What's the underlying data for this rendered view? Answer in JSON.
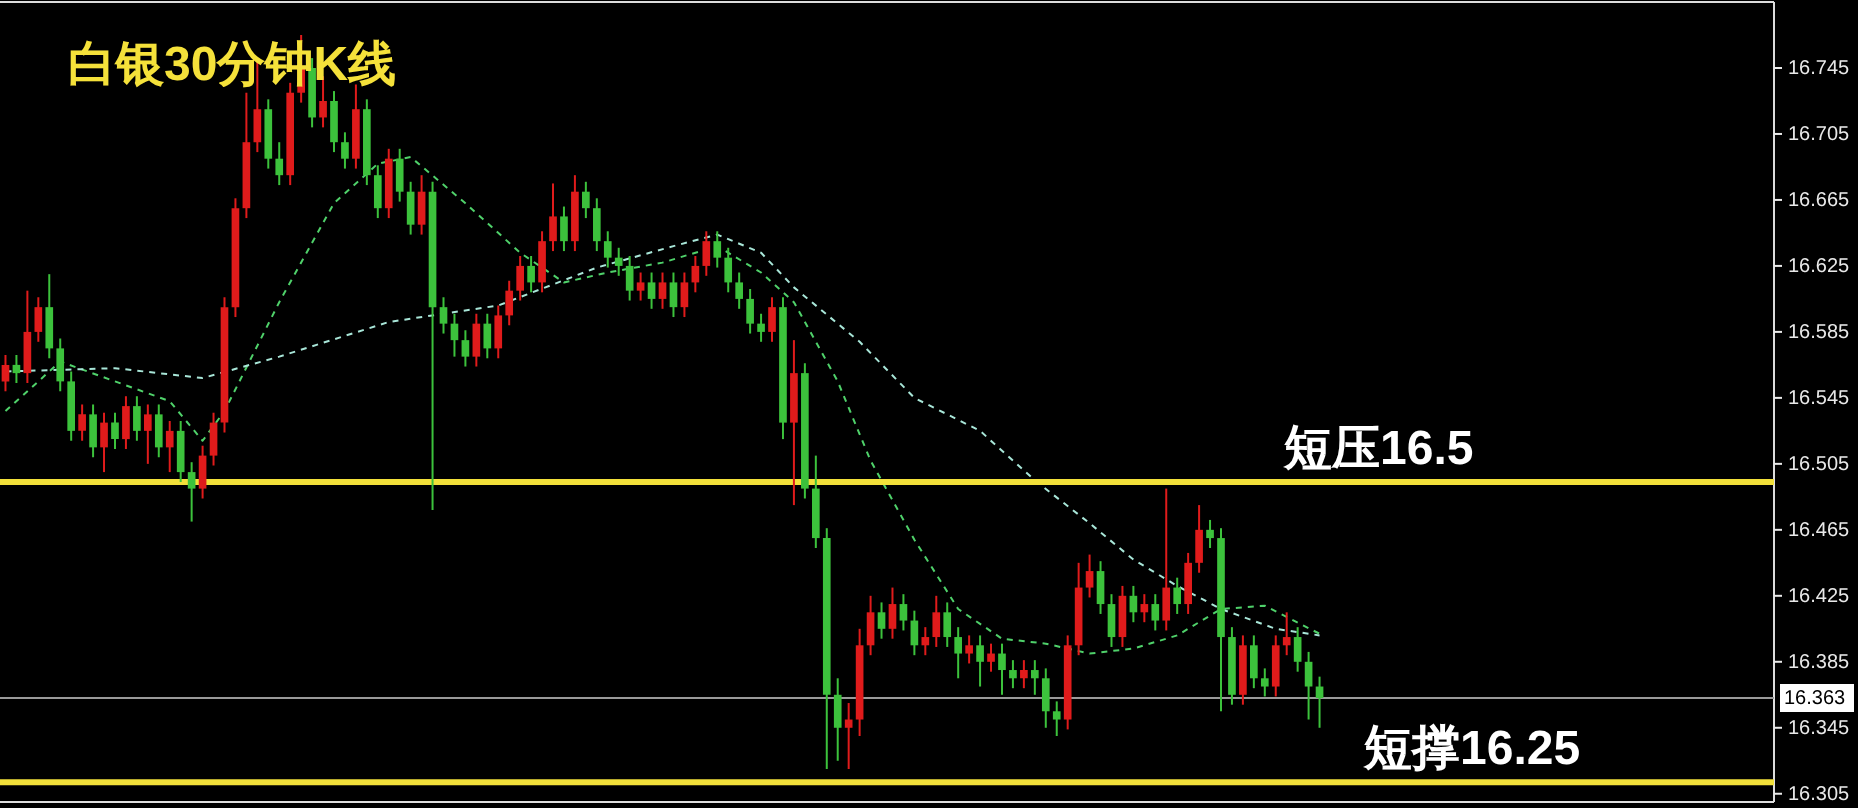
{
  "chart_data": {
    "type": "candlestick",
    "title": "白银30分钟K线",
    "categories": [
      null,
      null,
      null,
      null,
      null,
      null,
      null,
      null,
      null,
      null,
      null,
      null,
      null,
      null,
      null,
      null,
      null,
      null,
      null,
      null,
      null,
      null,
      null,
      null,
      null,
      null,
      null,
      null,
      null,
      null,
      null,
      null,
      null,
      null,
      null,
      null,
      null,
      null,
      null,
      null,
      null,
      null,
      null,
      null,
      null,
      null,
      null,
      null,
      null,
      null,
      null,
      null,
      null,
      null,
      null,
      null,
      null,
      null,
      null,
      null,
      null,
      null,
      null,
      null,
      null,
      null,
      null,
      null,
      null,
      null,
      null,
      null,
      null,
      null,
      null,
      null,
      null,
      null,
      null,
      null,
      null,
      null,
      null,
      null,
      null,
      null,
      null,
      null,
      null,
      null,
      null,
      null,
      null,
      null,
      null,
      null,
      null,
      null,
      null,
      null,
      null,
      null,
      null,
      null,
      null,
      null,
      null,
      null,
      null,
      null,
      null,
      null,
      null,
      null,
      null,
      null,
      null,
      null,
      null,
      null,
      null,
      null,
      null,
      null,
      null,
      null,
      null,
      null,
      null,
      null,
      null,
      null,
      null,
      null,
      null,
      null,
      null,
      null,
      null,
      null,
      null,
      null,
      null,
      null,
      null,
      null,
      null,
      null,
      null,
      null,
      null,
      null,
      null,
      null,
      null,
      null,
      null,
      null,
      null,
      null,
      null,
      null
    ],
    "ohlc": [
      [
        16.555,
        16.571,
        16.549,
        16.565
      ],
      [
        16.565,
        16.571,
        16.554,
        16.56
      ],
      [
        16.56,
        16.61,
        16.554,
        16.585
      ],
      [
        16.585,
        16.606,
        16.579,
        16.6
      ],
      [
        16.6,
        16.62,
        16.569,
        16.575
      ],
      [
        16.575,
        16.581,
        16.549,
        16.555
      ],
      [
        16.555,
        16.561,
        16.519,
        16.525
      ],
      [
        16.525,
        16.541,
        16.519,
        16.535
      ],
      [
        16.535,
        16.541,
        16.509,
        16.515
      ],
      [
        16.515,
        16.536,
        16.5,
        16.53
      ],
      [
        16.53,
        16.536,
        16.514,
        16.52
      ],
      [
        16.52,
        16.546,
        16.514,
        16.54
      ],
      [
        16.54,
        16.546,
        16.519,
        16.525
      ],
      [
        16.525,
        16.541,
        16.505,
        16.535
      ],
      [
        16.535,
        16.541,
        16.509,
        16.515
      ],
      [
        16.515,
        16.531,
        16.5,
        16.525
      ],
      [
        16.525,
        16.531,
        16.494,
        16.5
      ],
      [
        16.5,
        16.506,
        16.47,
        16.49
      ],
      [
        16.49,
        16.516,
        16.484,
        16.51
      ],
      [
        16.51,
        16.536,
        16.504,
        16.53
      ],
      [
        16.53,
        16.606,
        16.524,
        16.6
      ],
      [
        16.6,
        16.666,
        16.594,
        16.66
      ],
      [
        16.66,
        16.73,
        16.654,
        16.7
      ],
      [
        16.7,
        16.75,
        16.694,
        16.72
      ],
      [
        16.72,
        16.726,
        16.684,
        16.69
      ],
      [
        16.69,
        16.7,
        16.674,
        16.68
      ],
      [
        16.68,
        16.736,
        16.674,
        16.73
      ],
      [
        16.73,
        16.765,
        16.724,
        16.745
      ],
      [
        16.745,
        16.751,
        16.709,
        16.715
      ],
      [
        16.715,
        16.74,
        16.709,
        16.725
      ],
      [
        16.725,
        16.731,
        16.694,
        16.7
      ],
      [
        16.7,
        16.706,
        16.684,
        16.69
      ],
      [
        16.69,
        16.735,
        16.684,
        16.72
      ],
      [
        16.72,
        16.726,
        16.674,
        16.68
      ],
      [
        16.68,
        16.686,
        16.654,
        16.66
      ],
      [
        16.66,
        16.696,
        16.654,
        16.69
      ],
      [
        16.69,
        16.696,
        16.664,
        16.67
      ],
      [
        16.67,
        16.676,
        16.644,
        16.65
      ],
      [
        16.65,
        16.68,
        16.644,
        16.67
      ],
      [
        16.67,
        16.676,
        16.477,
        16.6
      ],
      [
        16.6,
        16.606,
        16.584,
        16.59
      ],
      [
        16.59,
        16.596,
        16.57,
        16.58
      ],
      [
        16.58,
        16.586,
        16.564,
        16.57
      ],
      [
        16.57,
        16.596,
        16.564,
        16.59
      ],
      [
        16.59,
        16.596,
        16.569,
        16.575
      ],
      [
        16.575,
        16.601,
        16.569,
        16.595
      ],
      [
        16.595,
        16.616,
        16.589,
        16.61
      ],
      [
        16.61,
        16.631,
        16.604,
        16.625
      ],
      [
        16.625,
        16.631,
        16.609,
        16.615
      ],
      [
        16.615,
        16.646,
        16.609,
        16.64
      ],
      [
        16.64,
        16.675,
        16.634,
        16.655
      ],
      [
        16.655,
        16.661,
        16.634,
        16.64
      ],
      [
        16.64,
        16.68,
        16.634,
        16.67
      ],
      [
        16.67,
        16.676,
        16.654,
        16.66
      ],
      [
        16.66,
        16.666,
        16.634,
        16.64
      ],
      [
        16.64,
        16.646,
        16.624,
        16.63
      ],
      [
        16.63,
        16.636,
        16.619,
        16.625
      ],
      [
        16.625,
        16.631,
        16.604,
        16.61
      ],
      [
        16.61,
        16.621,
        16.604,
        16.615
      ],
      [
        16.615,
        16.621,
        16.599,
        16.605
      ],
      [
        16.605,
        16.621,
        16.599,
        16.615
      ],
      [
        16.615,
        16.621,
        16.594,
        16.6
      ],
      [
        16.6,
        16.621,
        16.594,
        16.615
      ],
      [
        16.615,
        16.631,
        16.609,
        16.625
      ],
      [
        16.625,
        16.646,
        16.619,
        16.64
      ],
      [
        16.64,
        16.646,
        16.624,
        16.63
      ],
      [
        16.63,
        16.636,
        16.609,
        16.615
      ],
      [
        16.615,
        16.621,
        16.599,
        16.605
      ],
      [
        16.605,
        16.611,
        16.584,
        16.59
      ],
      [
        16.59,
        16.596,
        16.579,
        16.585
      ],
      [
        16.585,
        16.606,
        16.579,
        16.6
      ],
      [
        16.6,
        16.606,
        16.52,
        16.53
      ],
      [
        16.53,
        16.58,
        16.48,
        16.56
      ],
      [
        16.56,
        16.566,
        16.484,
        16.49
      ],
      [
        16.49,
        16.51,
        16.454,
        16.46
      ],
      [
        16.46,
        16.466,
        16.32,
        16.365
      ],
      [
        16.365,
        16.375,
        16.325,
        16.345
      ],
      [
        16.345,
        16.36,
        16.32,
        16.35
      ],
      [
        16.35,
        16.405,
        16.34,
        16.395
      ],
      [
        16.395,
        16.425,
        16.389,
        16.415
      ],
      [
        16.415,
        16.421,
        16.399,
        16.405
      ],
      [
        16.405,
        16.43,
        16.399,
        16.42
      ],
      [
        16.42,
        16.426,
        16.404,
        16.41
      ],
      [
        16.41,
        16.416,
        16.389,
        16.395
      ],
      [
        16.395,
        16.406,
        16.389,
        16.4
      ],
      [
        16.4,
        16.425,
        16.394,
        16.415
      ],
      [
        16.415,
        16.421,
        16.394,
        16.4
      ],
      [
        16.4,
        16.406,
        16.375,
        16.39
      ],
      [
        16.39,
        16.401,
        16.384,
        16.395
      ],
      [
        16.395,
        16.401,
        16.37,
        16.385
      ],
      [
        16.385,
        16.396,
        16.379,
        16.39
      ],
      [
        16.39,
        16.396,
        16.365,
        16.38
      ],
      [
        16.38,
        16.386,
        16.369,
        16.375
      ],
      [
        16.375,
        16.386,
        16.369,
        16.38
      ],
      [
        16.38,
        16.386,
        16.365,
        16.375
      ],
      [
        16.375,
        16.381,
        16.345,
        16.355
      ],
      [
        16.355,
        16.361,
        16.34,
        16.35
      ],
      [
        16.35,
        16.401,
        16.344,
        16.395
      ],
      [
        16.395,
        16.445,
        16.389,
        16.43
      ],
      [
        16.43,
        16.45,
        16.424,
        16.44
      ],
      [
        16.44,
        16.446,
        16.414,
        16.42
      ],
      [
        16.42,
        16.426,
        16.394,
        16.4
      ],
      [
        16.4,
        16.431,
        16.394,
        16.425
      ],
      [
        16.425,
        16.431,
        16.409,
        16.415
      ],
      [
        16.415,
        16.426,
        16.409,
        16.42
      ],
      [
        16.42,
        16.426,
        16.404,
        16.41
      ],
      [
        16.41,
        16.49,
        16.404,
        16.43
      ],
      [
        16.43,
        16.436,
        16.414,
        16.42
      ],
      [
        16.42,
        16.451,
        16.414,
        16.445
      ],
      [
        16.445,
        16.48,
        16.439,
        16.465
      ],
      [
        16.465,
        16.471,
        16.454,
        16.46
      ],
      [
        16.46,
        16.466,
        16.355,
        16.4
      ],
      [
        16.4,
        16.406,
        16.359,
        16.365
      ],
      [
        16.365,
        16.401,
        16.359,
        16.395
      ],
      [
        16.395,
        16.401,
        16.369,
        16.375
      ],
      [
        16.375,
        16.381,
        16.364,
        16.37
      ],
      [
        16.37,
        16.401,
        16.364,
        16.395
      ],
      [
        16.395,
        16.415,
        16.389,
        16.4
      ],
      [
        16.4,
        16.406,
        16.379,
        16.385
      ],
      [
        16.385,
        16.391,
        16.35,
        16.37
      ],
      [
        16.37,
        16.376,
        16.345,
        16.363
      ],
      null,
      null,
      null,
      null,
      null,
      null,
      null,
      null,
      null,
      null,
      null,
      null,
      null,
      null,
      null,
      null,
      null,
      null,
      null,
      null,
      null,
      null,
      null,
      null,
      null,
      null,
      null,
      null,
      null,
      null,
      null,
      null,
      null,
      null,
      null,
      null,
      null,
      null,
      null,
      null,
      null
    ],
    "colors": [
      "#e01b1b",
      "#3cc23c",
      "#e01b1b",
      "#e01b1b",
      "#3cc23c",
      "#3cc23c",
      "#3cc23c",
      "#e01b1b",
      "#3cc23c",
      "#e01b1b",
      "#3cc23c",
      "#e01b1b",
      "#3cc23c",
      "#e01b1b",
      "#3cc23c",
      "#e01b1b",
      "#3cc23c",
      "#3cc23c",
      "#e01b1b",
      "#e01b1b",
      "#e01b1b",
      "#e01b1b",
      "#e01b1b",
      "#e01b1b",
      "#3cc23c",
      "#3cc23c",
      "#e01b1b",
      "#e01b1b",
      "#3cc23c",
      "#e01b1b",
      "#3cc23c",
      "#3cc23c",
      "#e01b1b",
      "#3cc23c",
      "#3cc23c",
      "#e01b1b",
      "#3cc23c",
      "#3cc23c",
      "#e01b1b",
      "#3cc23c",
      "#3cc23c",
      "#3cc23c",
      "#3cc23c",
      "#e01b1b",
      "#3cc23c",
      "#e01b1b",
      "#e01b1b",
      "#e01b1b",
      "#3cc23c",
      "#e01b1b",
      "#e01b1b",
      "#3cc23c",
      "#e01b1b",
      "#3cc23c",
      "#3cc23c",
      "#3cc23c",
      "#3cc23c",
      "#3cc23c",
      "#e01b1b",
      "#3cc23c",
      "#e01b1b",
      "#3cc23c",
      "#e01b1b",
      "#e01b1b",
      "#e01b1b",
      "#3cc23c",
      "#3cc23c",
      "#3cc23c",
      "#3cc23c",
      "#3cc23c",
      "#e01b1b",
      "#3cc23c",
      "#e01b1b",
      "#3cc23c",
      "#3cc23c",
      "#3cc23c",
      "#3cc23c",
      "#e01b1b",
      "#e01b1b",
      "#e01b1b",
      "#3cc23c",
      "#e01b1b",
      "#3cc23c",
      "#3cc23c",
      "#e01b1b",
      "#e01b1b",
      "#3cc23c",
      "#3cc23c",
      "#e01b1b",
      "#3cc23c",
      "#e01b1b",
      "#3cc23c",
      "#3cc23c",
      "#e01b1b",
      "#3cc23c",
      "#3cc23c",
      "#3cc23c",
      "#e01b1b",
      "#e01b1b",
      "#e01b1b",
      "#3cc23c",
      "#3cc23c",
      "#e01b1b",
      "#3cc23c",
      "#e01b1b",
      "#3cc23c",
      "#e01b1b",
      "#3cc23c",
      "#e01b1b",
      "#e01b1b",
      "#3cc23c",
      "#3cc23c",
      "#3cc23c",
      "#e01b1b",
      "#3cc23c",
      "#3cc23c",
      "#e01b1b",
      "#e01b1b",
      "#3cc23c",
      "#3cc23c",
      "#3cc23c",
      null,
      null,
      null,
      null,
      null,
      null,
      null,
      null,
      null,
      null,
      null,
      null,
      null,
      null,
      null,
      null,
      null,
      null,
      null,
      null,
      null,
      null,
      null,
      null,
      null,
      null,
      null,
      null,
      null,
      null,
      null,
      null,
      null,
      null,
      null,
      null,
      null,
      null,
      null,
      null,
      null
    ],
    "series": [
      {
        "type": "line",
        "color": "#4fd16a",
        "line_style": "dashed",
        "values": [
          16.537,
          null,
          null,
          null,
          null,
          16.567,
          null,
          null,
          null,
          null,
          16.555,
          null,
          null,
          null,
          null,
          16.543,
          null,
          null,
          16.519,
          null,
          16.537,
          null,
          null,
          null,
          null,
          16.603,
          null,
          null,
          null,
          null,
          16.663,
          null,
          null,
          null,
          16.687,
          null,
          null,
          16.691,
          null,
          null,
          null,
          null,
          16.663,
          null,
          null,
          null,
          null,
          16.633,
          null,
          null,
          null,
          16.615,
          null,
          null,
          null,
          16.621,
          null,
          null,
          null,
          null,
          16.627,
          null,
          null,
          null,
          null,
          16.637,
          null,
          null,
          null,
          16.621,
          null,
          null,
          16.603,
          null,
          null,
          null,
          16.555,
          null,
          null,
          16.507,
          null,
          null,
          null,
          16.459,
          null,
          null,
          null,
          16.417,
          null,
          null,
          null,
          16.399,
          null,
          null,
          null,
          16.396,
          null,
          null,
          null,
          16.39,
          null,
          null,
          null,
          16.393,
          null,
          null,
          null,
          16.401,
          null,
          null,
          null,
          16.417,
          null,
          null,
          null,
          16.419,
          null,
          null,
          null,
          null,
          16.402,
          null,
          null,
          null,
          null,
          null,
          null,
          null,
          null,
          null,
          null,
          null,
          null,
          null,
          null,
          null,
          null,
          null,
          null,
          null,
          null,
          null,
          null,
          null,
          null,
          null,
          null,
          null,
          null,
          null,
          null,
          null,
          null,
          null,
          null,
          null,
          null,
          null,
          null,
          null,
          null,
          null
        ]
      },
      {
        "type": "line",
        "color": "#a8e6d8",
        "line_style": "dashed",
        "values": [
          16.561,
          null,
          null,
          null,
          null,
          null,
          null,
          null,
          null,
          null,
          16.563,
          null,
          null,
          null,
          null,
          null,
          null,
          null,
          16.557,
          null,
          null,
          null,
          null,
          null,
          null,
          16.57,
          null,
          null,
          null,
          null,
          null,
          null,
          null,
          null,
          null,
          16.591,
          null,
          null,
          null,
          null,
          null,
          null,
          null,
          null,
          null,
          16.601,
          null,
          null,
          null,
          null,
          null,
          null,
          null,
          null,
          16.624,
          null,
          null,
          null,
          null,
          null,
          null,
          16.637,
          null,
          null,
          null,
          16.644,
          null,
          null,
          null,
          16.633,
          null,
          null,
          16.612,
          null,
          null,
          null,
          null,
          null,
          16.579,
          null,
          null,
          null,
          null,
          16.545,
          null,
          null,
          null,
          null,
          null,
          16.525,
          null,
          null,
          null,
          null,
          16.495,
          null,
          null,
          null,
          null,
          16.469,
          null,
          null,
          null,
          16.447,
          null,
          null,
          null,
          16.431,
          null,
          null,
          null,
          16.417,
          null,
          null,
          null,
          null,
          16.405,
          null,
          null,
          null,
          16.401,
          null,
          null,
          null,
          null,
          null,
          null,
          null,
          null,
          null,
          null,
          null,
          null,
          null,
          null,
          null,
          null,
          null,
          null,
          null,
          null,
          null,
          null,
          null,
          null,
          null,
          null,
          null,
          null,
          null,
          null,
          null,
          null,
          null,
          null,
          null,
          null,
          null,
          null,
          null,
          null,
          null
        ]
      }
    ],
    "ref_lines": [
      {
        "axis": "y",
        "value": 16.494,
        "label": "短压16.5",
        "color": "#f2e03a"
      },
      {
        "axis": "y",
        "value": 16.312,
        "label": "短撑16.25",
        "color": "#f2e03a"
      },
      {
        "axis": "y",
        "value": 16.363,
        "label": "16.363",
        "color": "#9a9a9a"
      }
    ],
    "ylim": [
      16.3,
      16.785
    ],
    "yticks": [
      16.305,
      16.345,
      16.385,
      16.425,
      16.465,
      16.505,
      16.545,
      16.585,
      16.625,
      16.665,
      16.705,
      16.745
    ],
    "grid": false
  }
}
